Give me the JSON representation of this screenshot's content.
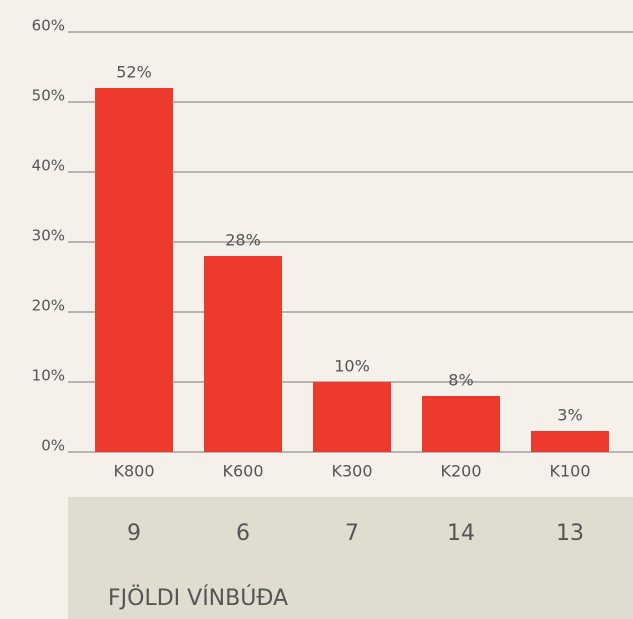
{
  "chart_data": {
    "type": "bar",
    "categories": [
      "K800",
      "K600",
      "K300",
      "K200",
      "K100"
    ],
    "values": [
      52,
      28,
      10,
      8,
      3
    ],
    "value_labels": [
      "52%",
      "28%",
      "10%",
      "8%",
      "3%"
    ],
    "color": "#ee3a2c",
    "ylim": [
      0,
      60
    ],
    "yticks": [
      {
        "value": 0,
        "label": "0%"
      },
      {
        "value": 10,
        "label": "10%"
      },
      {
        "value": 20,
        "label": "20%"
      },
      {
        "value": 30,
        "label": "30%"
      },
      {
        "value": 40,
        "label": "40%"
      },
      {
        "value": 50,
        "label": "50%"
      },
      {
        "value": 60,
        "label": "60%"
      }
    ],
    "grid": true
  },
  "table": {
    "counts": [
      "9",
      "6",
      "7",
      "14",
      "13"
    ],
    "label": "FJÖLDI VÍNBÚÐA"
  }
}
